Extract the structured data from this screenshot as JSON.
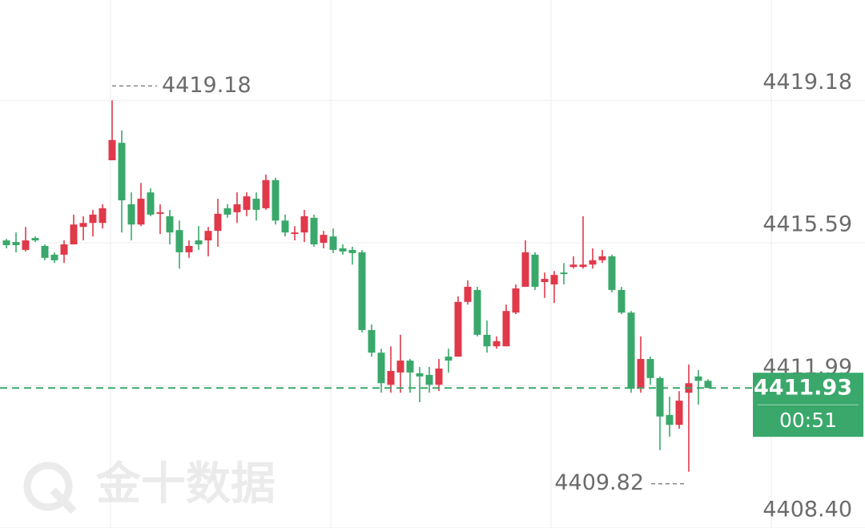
{
  "chart_data": {
    "type": "candlestick",
    "watermark": "金十数据",
    "countdown": "00:51",
    "up_color": "#e0394a",
    "down_color": "#3aa86b",
    "ylim": [
      4408.4,
      4421.71
    ],
    "yticks": [
      {
        "value": 4408.4,
        "label": "4408.40"
      },
      4411.99,
      4415.59,
      4419.18
    ],
    "grid": true,
    "open": [
      4415.65,
      4415.61,
      4415.41,
      4415.71,
      4415.51,
      4415.29,
      4415.29,
      4415.55,
      4415.99,
      4416.09,
      4416.09,
      4417.67,
      4418.11,
      4416.56,
      4416.05,
      4416.86,
      4416.32,
      4416.26,
      4415.91,
      4415.35,
      4415.65,
      4415.65,
      4415.89,
      4416.46,
      4416.36,
      4416.42,
      4416.7,
      4416.46,
      4417.17,
      4416.15,
      4415.81,
      4415.85,
      4416.22,
      4415.59,
      4415.75,
      4415.45,
      4415.41,
      4415.35,
      4413.39,
      4412.82,
      4412.01,
      4412.32,
      4412.62,
      4412.3,
      4412.26,
      4412.01,
      4412.72,
      4412.72,
      4414.1,
      4414.4,
      4413.27,
      4412.98,
      4412.98,
      4413.83,
      4414.48,
      4415.29,
      4414.6,
      4414.54,
      4414.84,
      4414.98,
      4414.98,
      4415.04,
      4415.15,
      4415.25,
      4414.4,
      4413.83,
      4411.91,
      4412.66,
      4412.18,
      4411.25,
      4411.0,
      4411.81,
      4412.22,
      4412.11
    ],
    "high": [
      4415.69,
      4415.85,
      4415.99,
      4415.75,
      4415.55,
      4415.35,
      4415.65,
      4416.3,
      4416.26,
      4416.42,
      4416.56,
      4419.18,
      4418.42,
      4416.86,
      4417.1,
      4416.96,
      4416.56,
      4416.42,
      4416.15,
      4415.65,
      4416.01,
      4415.99,
      4416.7,
      4416.56,
      4416.86,
      4416.86,
      4416.86,
      4417.31,
      4417.23,
      4416.3,
      4416.01,
      4416.42,
      4416.3,
      4415.89,
      4415.95,
      4415.55,
      4415.49,
      4415.41,
      4413.53,
      4412.92,
      4412.98,
      4413.27,
      4412.66,
      4412.46,
      4412.46,
      4412.66,
      4412.92,
      4414.24,
      4414.64,
      4414.48,
      4413.63,
      4413.23,
      4414.03,
      4414.54,
      4415.65,
      4415.35,
      4414.84,
      4414.88,
      4415.08,
      4415.25,
      4416.26,
      4415.45,
      4415.41,
      4415.29,
      4414.48,
      4413.87,
      4413.23,
      4412.72,
      4412.22,
      4411.71,
      4411.85,
      4412.52,
      4412.38,
      4412.15
    ],
    "low": [
      4415.45,
      4415.35,
      4415.37,
      4415.61,
      4415.15,
      4415.08,
      4415.08,
      4415.55,
      4415.65,
      4415.75,
      4415.95,
      4417.67,
      4415.85,
      4415.65,
      4416.01,
      4416.26,
      4415.81,
      4415.55,
      4414.94,
      4415.21,
      4415.41,
      4415.25,
      4415.49,
      4416.22,
      4416.09,
      4416.26,
      4416.15,
      4416.42,
      4416.05,
      4415.75,
      4415.65,
      4415.61,
      4415.49,
      4415.45,
      4415.33,
      4415.29,
      4415.04,
      4413.33,
      4412.72,
      4411.81,
      4411.81,
      4411.81,
      4411.81,
      4411.57,
      4411.81,
      4411.85,
      4412.32,
      4412.72,
      4414.03,
      4413.23,
      4412.82,
      4412.92,
      4412.98,
      4413.79,
      4414.48,
      4414.4,
      4414.2,
      4414.07,
      4414.54,
      4414.94,
      4414.94,
      4414.94,
      4415.08,
      4414.34,
      4413.79,
      4411.81,
      4411.81,
      4412.01,
      4410.36,
      4410.7,
      4410.9,
      4409.82,
      4411.51,
      4411.93
    ],
    "close": [
      4415.53,
      4415.53,
      4415.65,
      4415.65,
      4415.21,
      4415.15,
      4415.55,
      4416.05,
      4416.09,
      4416.3,
      4416.46,
      4418.18,
      4416.66,
      4416.05,
      4416.7,
      4416.3,
      4416.36,
      4415.85,
      4415.35,
      4415.51,
      4415.55,
      4415.89,
      4416.32,
      4416.3,
      4416.56,
      4416.76,
      4416.42,
      4417.17,
      4416.15,
      4415.85,
      4415.85,
      4416.26,
      4415.55,
      4415.79,
      4415.41,
      4415.37,
      4415.33,
      4413.39,
      4412.82,
      4412.05,
      4412.36,
      4412.62,
      4412.32,
      4412.22,
      4412.01,
      4412.42,
      4412.62,
      4414.1,
      4414.48,
      4413.27,
      4412.98,
      4413.11,
      4413.87,
      4414.44,
      4415.35,
      4414.48,
      4414.68,
      4414.78,
      4414.8,
      4415.04,
      4415.04,
      4415.15,
      4415.25,
      4414.4,
      4413.83,
      4411.91,
      4412.66,
      4412.18,
      4411.21,
      4411.0,
      4411.61,
      4412.05,
      4412.11,
      4411.93
    ]
  }
}
